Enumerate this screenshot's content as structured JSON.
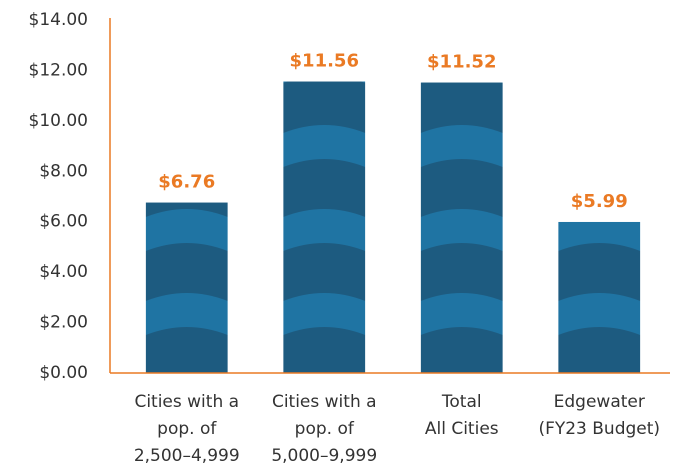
{
  "chart_data": {
    "type": "bar",
    "categories": [
      [
        "Cities with a",
        "pop. of",
        "2,500–4,999"
      ],
      [
        "Cities with a",
        "pop. of",
        "5,000–9,999"
      ],
      [
        "Total",
        "All Cities"
      ],
      [
        "Edgewater",
        "(FY23 Budget)"
      ]
    ],
    "values": [
      6.76,
      11.56,
      11.52,
      5.99
    ],
    "value_labels": [
      "$6.76",
      "$11.56",
      "$11.52",
      "$5.99"
    ],
    "color": "#1d5b80",
    "ylim": [
      0,
      14
    ],
    "yticks": [
      {
        "value": 0,
        "label": "$0.00"
      },
      {
        "value": 2,
        "label": "$2.00"
      },
      {
        "value": 4,
        "label": "$4.00"
      },
      {
        "value": 6,
        "label": "$6.00"
      },
      {
        "value": 8,
        "label": "$8.00"
      },
      {
        "value": 10,
        "label": "$10.00"
      },
      {
        "value": 12,
        "label": "$12.00"
      },
      {
        "value": 14,
        "label": "$14.00"
      }
    ],
    "grid": false
  }
}
